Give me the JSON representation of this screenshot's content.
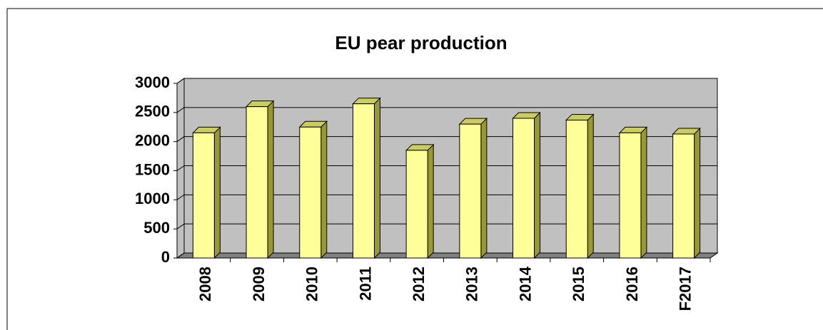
{
  "chart_data": {
    "type": "bar",
    "title": "EU pear production",
    "categories": [
      "2008",
      "2009",
      "2010",
      "2011",
      "2012",
      "2013",
      "2014",
      "2015",
      "2016",
      "F2017"
    ],
    "values": [
      2150,
      2600,
      2250,
      2650,
      1850,
      2300,
      2400,
      2370,
      2150,
      2130
    ],
    "color": "#ffff99",
    "ylim": [
      0,
      3000
    ],
    "yticks": [
      0,
      500,
      1000,
      1500,
      2000,
      2500,
      3000
    ],
    "grid": true
  }
}
